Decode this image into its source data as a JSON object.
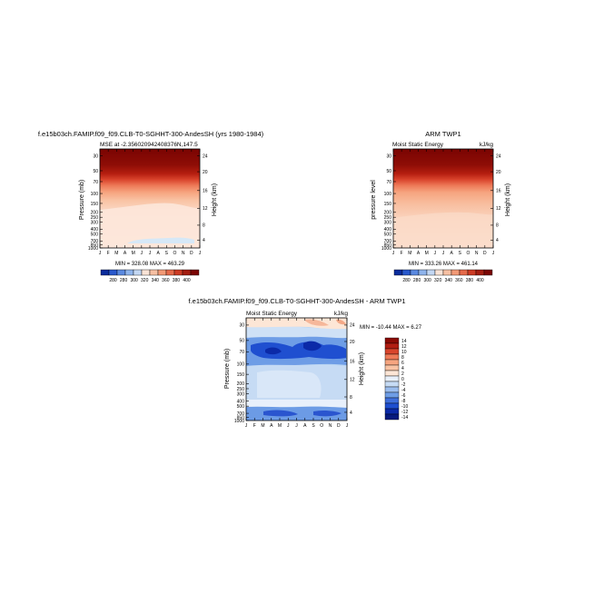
{
  "chart_data": [
    {
      "type": "heatmap",
      "title": "f.e15b03ch.FAMIP.f09_f09.CLB-T0-SGHHT-300-AndesSH (yrs 1980-1984)",
      "subtitle_left": "MSE at -2.356020942408376N,147.5",
      "subtitle_right": "",
      "ylabel": "Pressure (mb)",
      "y2label": "Height (km)",
      "x_ticks": [
        "J",
        "F",
        "M",
        "A",
        "M",
        "J",
        "J",
        "A",
        "S",
        "O",
        "N",
        "D",
        "J"
      ],
      "p_ticks": [
        "30",
        "50",
        "70",
        "100",
        "150",
        "200",
        "250",
        "300",
        "400",
        "500",
        "700",
        "850",
        "1000"
      ],
      "h_ticks": [
        "24",
        "20",
        "16",
        "12",
        "8",
        "4"
      ],
      "stats": "MIN = 328.08  MAX = 463.29",
      "colorbar_labels": [
        "280",
        "280",
        "300",
        "320",
        "340",
        "360",
        "380",
        "400"
      ]
    },
    {
      "type": "heatmap",
      "title": "ARM TWP1",
      "subtitle_left": "Moist Static Energy",
      "subtitle_right": "kJ/kg",
      "ylabel": "pressure level",
      "y2label": "Height (km)",
      "x_ticks": [
        "J",
        "F",
        "M",
        "A",
        "M",
        "J",
        "J",
        "A",
        "S",
        "O",
        "N",
        "D",
        "J"
      ],
      "p_ticks": [
        "30",
        "50",
        "70",
        "100",
        "150",
        "200",
        "250",
        "300",
        "400",
        "500",
        "700",
        "850",
        "1000"
      ],
      "h_ticks": [
        "24",
        "20",
        "16",
        "12",
        "8",
        "4"
      ],
      "stats": "MIN = 333.26  MAX = 461.14",
      "colorbar_labels": [
        "280",
        "280",
        "300",
        "320",
        "340",
        "360",
        "380",
        "400"
      ]
    },
    {
      "type": "heatmap",
      "title": "f.e15b03ch.FAMIP.f09_f09.CLB-T0-SGHHT-300-AndesSH - ARM TWP1",
      "subtitle_left": "Moist Static Energy",
      "subtitle_right": "kJ/kg",
      "ylabel": "Pressure (mb)",
      "y2label": "Height (km)",
      "x_ticks": [
        "J",
        "F",
        "M",
        "A",
        "M",
        "J",
        "J",
        "A",
        "S",
        "O",
        "N",
        "D",
        "J"
      ],
      "p_ticks": [
        "30",
        "50",
        "70",
        "100",
        "150",
        "200",
        "250",
        "300",
        "400",
        "500",
        "700",
        "850",
        "1000"
      ],
      "h_ticks": [
        "24",
        "20",
        "16",
        "12",
        "8",
        "4"
      ],
      "stats": "MIN = -10.44  MAX =   6.27",
      "colorbar_labels": [
        "14",
        "12",
        "10",
        "8",
        "6",
        "4",
        "2",
        "0",
        "-2",
        "-4",
        "-6",
        "-8",
        "-10",
        "-12",
        "-14"
      ]
    }
  ]
}
